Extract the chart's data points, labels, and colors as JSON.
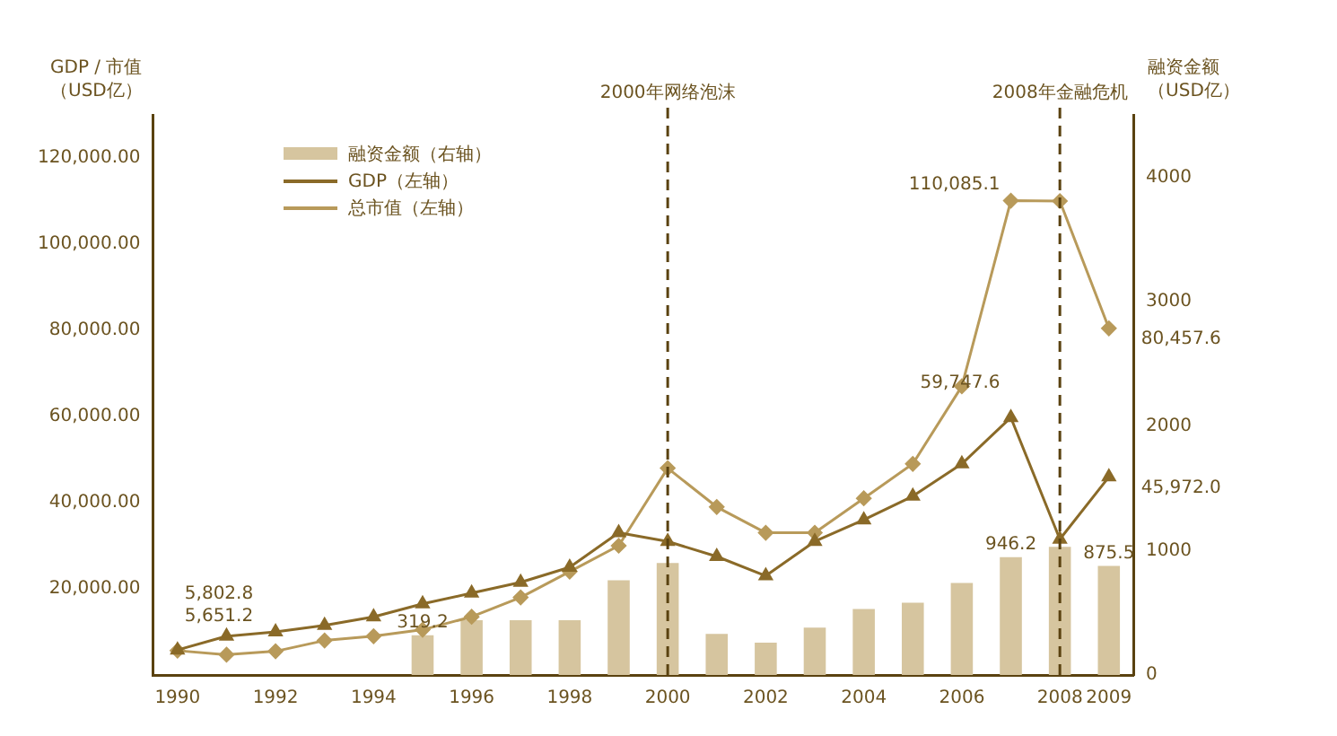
{
  "chart_data": {
    "type": "bar",
    "categories": [
      "1990",
      null,
      "1992",
      null,
      "1994",
      null,
      "1996",
      null,
      "1998",
      null,
      "2000",
      null,
      "2002",
      null,
      "2004",
      null,
      "2006",
      null,
      "2008",
      "2009"
    ],
    "ylabel": "GDP / 市值（USD亿）",
    "y2label": "融资金额（USD亿）",
    "series": [
      {
        "name": "融资金额（右轴）",
        "axis": "y2",
        "color": "#d6c59f",
        "values": [
          null,
          null,
          null,
          null,
          null,
          319.2,
          440,
          440,
          440,
          760,
          900,
          330,
          260,
          380,
          530,
          580,
          740,
          946.2,
          1030,
          875.5
        ],
        "value_labels": [
          null,
          null,
          null,
          null,
          null,
          "319.2",
          null,
          null,
          null,
          null,
          null,
          null,
          null,
          null,
          null,
          null,
          null,
          "946.2",
          null,
          "875.5"
        ]
      },
      {
        "name": "GDP（左轴）",
        "type": "line",
        "color": "#8a6a28",
        "marker": "triangle",
        "values": [
          5802.8,
          9000,
          10000,
          11500,
          13500,
          16500,
          19000,
          21500,
          25000,
          33000,
          31000,
          27500,
          23000,
          31000,
          36000,
          41500,
          49000,
          59747.6,
          31500,
          45972.0
        ],
        "value_labels": [
          "5,802.8",
          null,
          null,
          null,
          null,
          null,
          null,
          null,
          null,
          null,
          null,
          null,
          null,
          null,
          null,
          null,
          null,
          "59,747.6",
          null,
          "45,972.0"
        ]
      },
      {
        "name": "总市值（左轴）",
        "type": "line",
        "color": "#b89a5a",
        "marker": "diamond",
        "values": [
          5651.2,
          4700,
          5500,
          8000,
          9000,
          10500,
          13500,
          18000,
          24000,
          30000,
          48000,
          39000,
          33000,
          33000,
          41000,
          49000,
          67000,
          110085.1,
          110000,
          80457.6
        ],
        "value_labels": [
          "5,651.2",
          null,
          null,
          null,
          null,
          null,
          null,
          null,
          null,
          null,
          null,
          null,
          null,
          null,
          null,
          null,
          null,
          "110,085.1",
          null,
          "80,457.6"
        ]
      }
    ],
    "ylim": [
      0,
      130000
    ],
    "yticks": [
      {
        "value": 0,
        "label": null
      },
      {
        "value": 20000,
        "label": "20,000.00"
      },
      {
        "value": 40000,
        "label": "40,000.00"
      },
      {
        "value": 60000,
        "label": "60,000.00"
      },
      {
        "value": 80000,
        "label": "80,000.00"
      },
      {
        "value": 100000,
        "label": "100,000.00"
      },
      {
        "value": 120000,
        "label": "120,000.00"
      }
    ],
    "y2lim": [
      0,
      4500
    ],
    "y2ticks": [
      0,
      1000,
      2000,
      3000,
      4000
    ],
    "ref_lines": [
      {
        "axis": "x",
        "value": "2000",
        "label": "2000年网络泡沫",
        "color": "#5a4210",
        "line_style": "dashed"
      },
      {
        "axis": "x",
        "value": "2008",
        "label": "2008年金融危机",
        "color": "#5a4210",
        "line_style": "dashed"
      }
    ],
    "legend": "top left",
    "grid": false
  }
}
